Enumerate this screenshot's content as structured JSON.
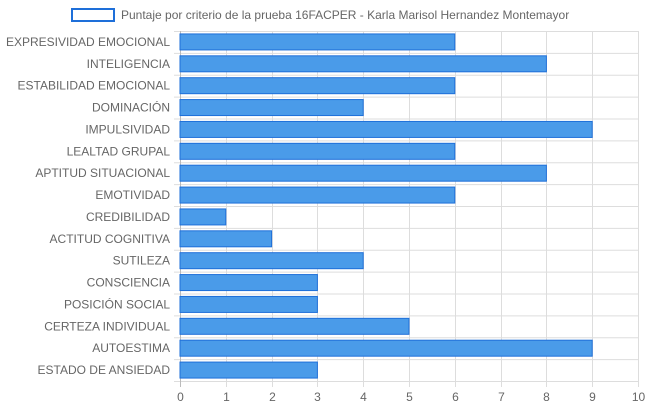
{
  "chart_data": {
    "type": "bar",
    "orientation": "horizontal",
    "categories": [
      "EXPRESIVIDAD EMOCIONAL",
      "INTELIGENCIA",
      "ESTABILIDAD EMOCIONAL",
      "DOMINACIÓN",
      "IMPULSIVIDAD",
      "LEALTAD GRUPAL",
      "APTITUD SITUACIONAL",
      "EMOTIVIDAD",
      "CREDIBILIDAD",
      "ACTITUD COGNITIVA",
      "SUTILEZA",
      "CONSCIENCIA",
      "POSICIÓN SOCIAL",
      "CERTEZA INDIVIDUAL",
      "AUTOESTIMA",
      "ESTADO DE ANSIEDAD"
    ],
    "series": [
      {
        "name": "Puntaje por criterio de la prueba 16FACPER - Karla Marisol Hernandez Montemayor",
        "values": [
          6,
          8,
          6,
          4,
          9,
          6,
          8,
          6,
          1,
          2,
          4,
          3,
          3,
          5,
          9,
          3
        ]
      }
    ],
    "xlim": [
      0,
      10
    ],
    "xticks": [
      0,
      1,
      2,
      3,
      4,
      5,
      6,
      7,
      8,
      9,
      10
    ],
    "grid": true,
    "legend_position": "top",
    "colors": {
      "bar_fill": "#4a9be9",
      "bar_border": "#1e6fd9",
      "grid": "#dddddd",
      "label": "#666666"
    }
  }
}
